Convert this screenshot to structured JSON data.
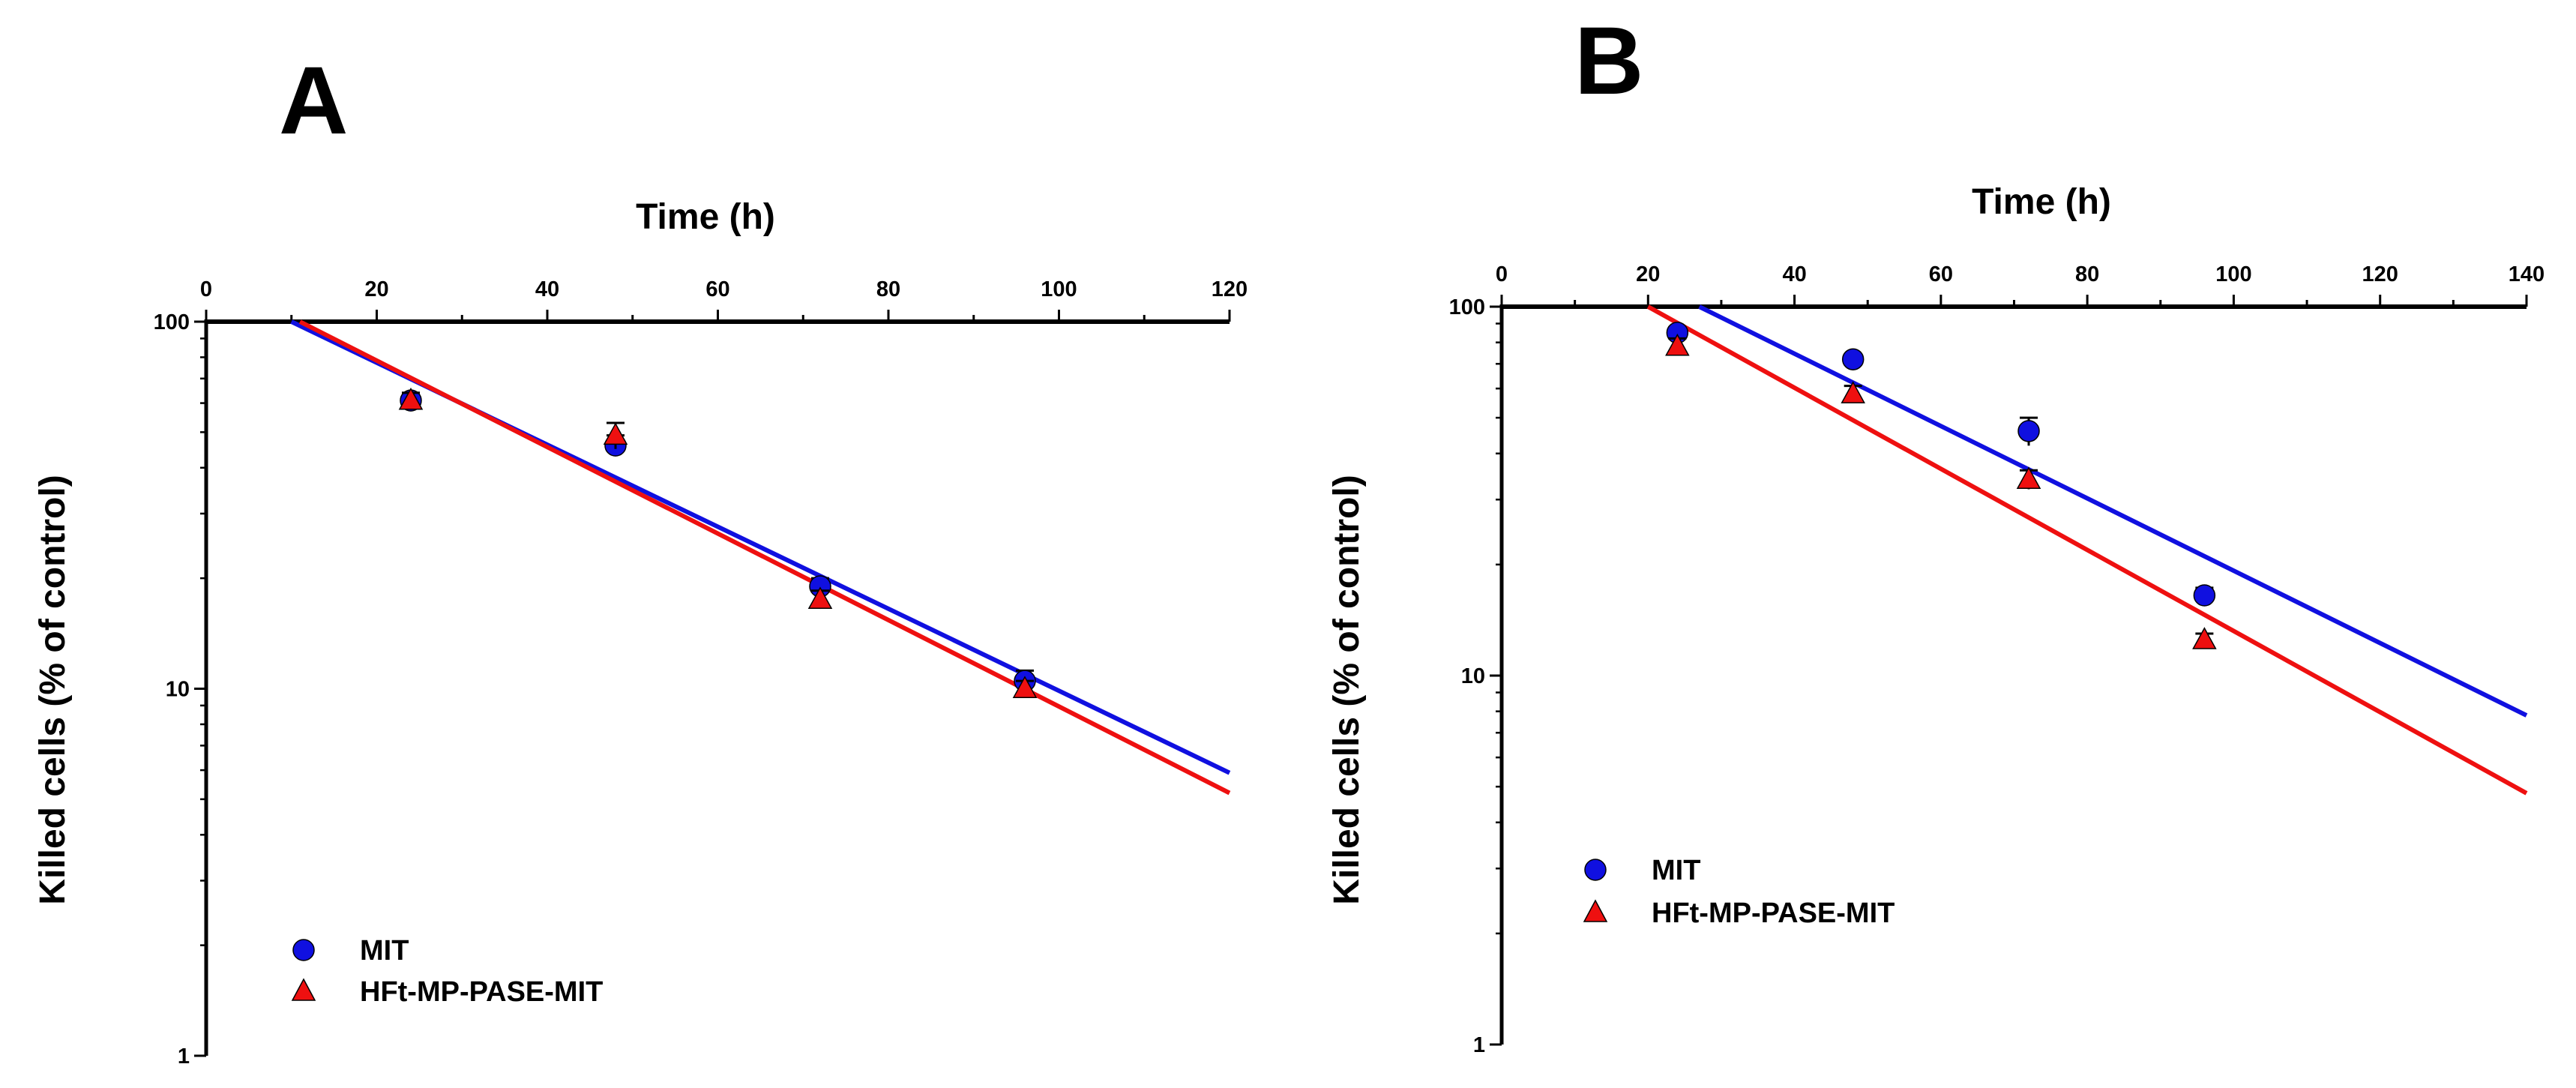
{
  "chart_data": [
    {
      "panel": "A",
      "type": "scatter",
      "xlabel": "Time (h)",
      "ylabel": "Killed cells (% of control)",
      "xlim": [
        0,
        120
      ],
      "xticks": [
        "0",
        "20",
        "40",
        "60",
        "80",
        "100",
        "120"
      ],
      "ylim": [
        1,
        100
      ],
      "yscale": "log",
      "yticks": [
        "1",
        "10",
        "100"
      ],
      "legend_position": "bottom-left",
      "series": [
        {
          "name": "MIT",
          "marker": "circle",
          "color": "#1010e0",
          "x": [
            24,
            48,
            72,
            96
          ],
          "y": [
            61,
            46,
            19,
            10.5
          ],
          "err": [
            3,
            3,
            1,
            0.7
          ],
          "fit": {
            "x": [
              10,
              120
            ],
            "y": [
              100,
              5.9
            ]
          }
        },
        {
          "name": "HFt-MP-PASE-MIT",
          "marker": "triangle",
          "color": "#ee1010",
          "x": [
            24,
            48,
            72,
            96
          ],
          "y": [
            61,
            49,
            17.5,
            10
          ],
          "err": [
            3,
            4,
            1,
            0.5
          ],
          "fit": {
            "x": [
              11,
              120
            ],
            "y": [
              100,
              5.2
            ]
          }
        }
      ]
    },
    {
      "panel": "B",
      "type": "scatter",
      "xlabel": "Time (h)",
      "ylabel": "Killed cells (% of control)",
      "xlim": [
        0,
        140
      ],
      "xticks": [
        "0",
        "20",
        "40",
        "60",
        "80",
        "100",
        "120",
        "140"
      ],
      "ylim": [
        1,
        100
      ],
      "yscale": "log",
      "yticks": [
        "1",
        "10",
        "100"
      ],
      "legend_position": "bottom-left",
      "series": [
        {
          "name": "MIT",
          "marker": "circle",
          "color": "#1010e0",
          "x": [
            24,
            48,
            72,
            96
          ],
          "y": [
            85,
            72,
            46,
            16.5
          ],
          "err": [
            3,
            2,
            4,
            0.8
          ],
          "fit": {
            "x": [
              27,
              140
            ],
            "y": [
              100,
              7.8
            ]
          }
        },
        {
          "name": "HFt-MP-PASE-MIT",
          "marker": "triangle",
          "color": "#ee1010",
          "x": [
            24,
            48,
            72,
            96
          ],
          "y": [
            78,
            58,
            34,
            12.5
          ],
          "err": [
            4,
            3,
            2,
            0.5
          ],
          "fit": {
            "x": [
              20,
              140
            ],
            "y": [
              100,
              4.8
            ]
          }
        }
      ]
    }
  ]
}
